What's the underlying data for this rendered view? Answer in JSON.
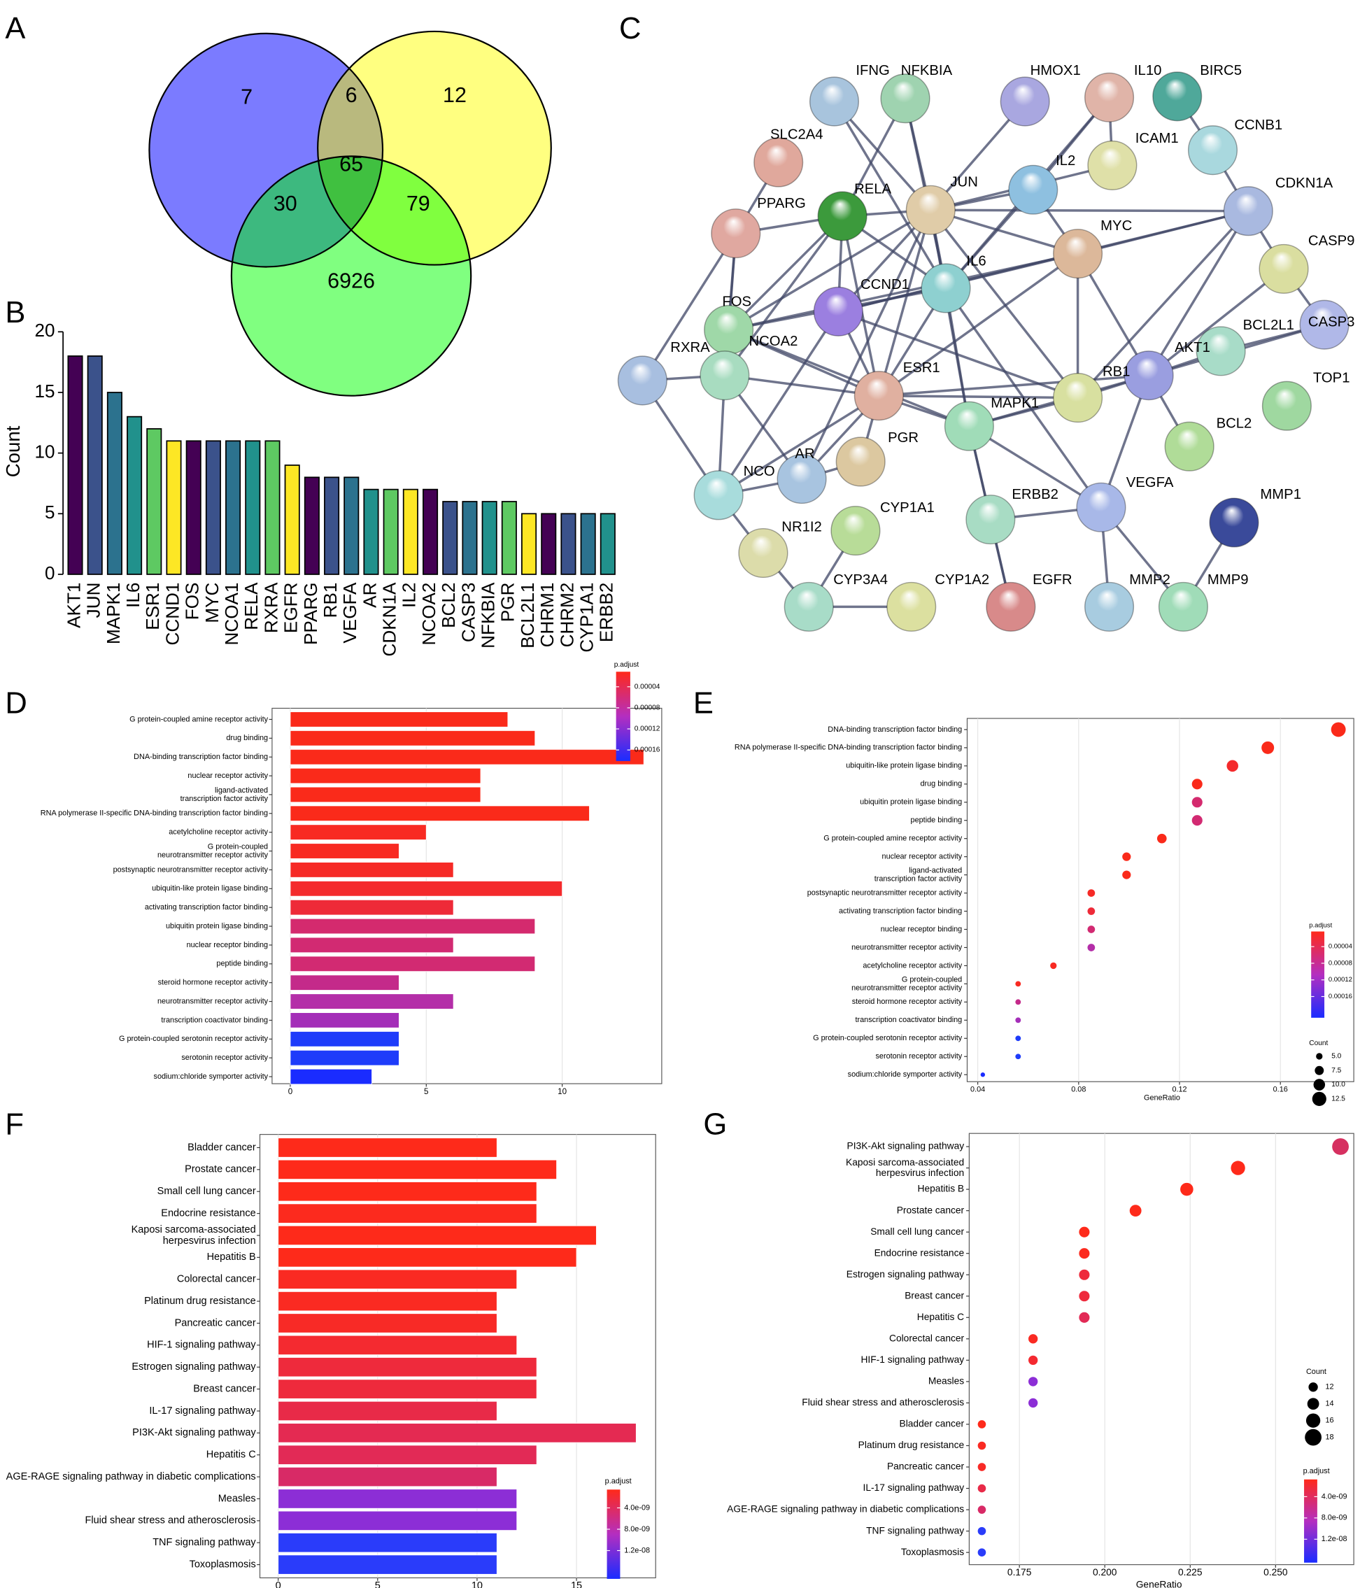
{
  "chart_data": [
    {
      "type": "venn",
      "panel": "A",
      "values": [
        7,
        6,
        12,
        30,
        65,
        79,
        6926
      ],
      "colors": [
        "#7b7bff",
        "#ffff80",
        "#80ff80"
      ]
    },
    {
      "type": "bar",
      "panel": "B",
      "ylabel": "Count",
      "categories": [
        "AKT1",
        "JUN",
        "MAPK1",
        "IL6",
        "ESR1",
        "CCND1",
        "FOS",
        "MYC",
        "NCOA1",
        "RELA",
        "RXRA",
        "EGFR",
        "PPARG",
        "RB1",
        "VEGFA",
        "AR",
        "CDKN1A",
        "IL2",
        "NCOA2",
        "BCL2",
        "CASP3",
        "NFKBIA",
        "PGR",
        "BCL2L1",
        "CHRM1",
        "CHRM2",
        "CYP1A1",
        "ERBB2"
      ],
      "values": [
        18,
        18,
        15,
        13,
        12,
        11,
        11,
        11,
        11,
        11,
        11,
        9,
        8,
        8,
        8,
        7,
        7,
        7,
        7,
        6,
        6,
        6,
        6,
        5,
        5,
        5,
        5,
        5
      ],
      "colors": [
        "#440154",
        "#3b528b",
        "#2c728e",
        "#21918c",
        "#5ec962",
        "#fde725",
        "#440154",
        "#3b528b",
        "#2c728e",
        "#21918c",
        "#5ec962",
        "#fde725",
        "#440154",
        "#3b528b",
        "#2c728e",
        "#21918c",
        "#5ec962",
        "#fde725",
        "#440154",
        "#3b528b",
        "#2c728e",
        "#21918c",
        "#5ec962",
        "#fde725",
        "#440154",
        "#3b528b",
        "#2c728e",
        "#21918c"
      ],
      "ylim": [
        0,
        20
      ],
      "yticks": [
        0,
        5,
        10,
        15,
        20
      ]
    },
    {
      "type": "network",
      "panel": "C",
      "nodes": [
        {
          "label": "IFNG",
          "color": "#a8c4dd"
        },
        {
          "label": "NFKBIA",
          "color": "#9fd3b0"
        },
        {
          "label": "HMOX1",
          "color": "#a9a7e0"
        },
        {
          "label": "IL10",
          "color": "#e0b4a8"
        },
        {
          "label": "BIRC5",
          "color": "#4fa89a"
        },
        {
          "label": "CCNB1",
          "color": "#a9d8de"
        },
        {
          "label": "SLC2A4",
          "color": "#e0a89c"
        },
        {
          "label": "ICAM1",
          "color": "#dfe0a8"
        },
        {
          "label": "IL2",
          "color": "#8ec0e0"
        },
        {
          "label": "CDKN1A",
          "color": "#a9b9e0"
        },
        {
          "label": "RELA",
          "color": "#3c9a3c"
        },
        {
          "label": "JUN",
          "color": "#e0cca8"
        },
        {
          "label": "PPARG",
          "color": "#e0a8a0"
        },
        {
          "label": "MYC",
          "color": "#dcb89a"
        },
        {
          "label": "CASP9",
          "color": "#dadea0"
        },
        {
          "label": "IL6",
          "color": "#8ed0d0"
        },
        {
          "label": "CCND1",
          "color": "#9b7fe0"
        },
        {
          "label": "FOS",
          "color": "#9fd8a8"
        },
        {
          "label": "CASP3",
          "color": "#b0b8e8"
        },
        {
          "label": "BCL2L1",
          "color": "#a8dcc8"
        },
        {
          "label": "AKT1",
          "color": "#9a9ee0"
        },
        {
          "label": "RB1",
          "color": "#d8e0a0"
        },
        {
          "label": "NCOA2",
          "color": "#a8dcc0"
        },
        {
          "label": "RXRA",
          "color": "#a8bfe0"
        },
        {
          "label": "ESR1",
          "color": "#e0b0a0"
        },
        {
          "label": "TOP1",
          "color": "#9fd8a0"
        },
        {
          "label": "MAPK1",
          "color": "#a0dcb8"
        },
        {
          "label": "BCL2",
          "color": "#b0dc98"
        },
        {
          "label": "AR",
          "color": "#a8c4e0"
        },
        {
          "label": "PGR",
          "color": "#dcc8a0"
        },
        {
          "label": "NCO",
          "color": "#a8dcdc"
        },
        {
          "label": "VEGFA",
          "color": "#a8b8e8"
        },
        {
          "label": "CYP1A1",
          "color": "#b8dc98"
        },
        {
          "label": "ERBB2",
          "color": "#a8dcc4"
        },
        {
          "label": "MMP1",
          "color": "#3a4a9a"
        },
        {
          "label": "NR1I2",
          "color": "#dcdcaa"
        },
        {
          "label": "CYP3A4",
          "color": "#a8dcc8"
        },
        {
          "label": "CYP1A2",
          "color": "#dce0a0"
        },
        {
          "label": "EGFR",
          "color": "#d88a8a"
        },
        {
          "label": "MMP2",
          "color": "#a8cce0"
        },
        {
          "label": "MMP9",
          "color": "#a0dcb8"
        }
      ],
      "edges": [
        [
          0,
          11
        ],
        [
          0,
          15
        ],
        [
          1,
          10
        ],
        [
          1,
          15
        ],
        [
          1,
          11
        ],
        [
          2,
          11
        ],
        [
          3,
          8
        ],
        [
          3,
          15
        ],
        [
          3,
          7
        ],
        [
          4,
          5
        ],
        [
          5,
          9
        ],
        [
          6,
          12
        ],
        [
          7,
          11
        ],
        [
          8,
          11
        ],
        [
          8,
          15
        ],
        [
          8,
          13
        ],
        [
          9,
          11
        ],
        [
          9,
          13
        ],
        [
          9,
          20
        ],
        [
          9,
          14
        ],
        [
          9,
          21
        ],
        [
          9,
          16
        ],
        [
          10,
          11
        ],
        [
          10,
          12
        ],
        [
          10,
          17
        ],
        [
          10,
          16
        ],
        [
          10,
          24
        ],
        [
          10,
          15
        ],
        [
          10,
          22
        ],
        [
          11,
          17
        ],
        [
          11,
          13
        ],
        [
          11,
          24
        ],
        [
          11,
          26
        ],
        [
          11,
          16
        ],
        [
          11,
          15
        ],
        [
          11,
          28
        ],
        [
          11,
          21
        ],
        [
          12,
          17
        ],
        [
          12,
          23
        ],
        [
          12,
          22
        ],
        [
          13,
          16
        ],
        [
          13,
          20
        ],
        [
          13,
          21
        ],
        [
          13,
          17
        ],
        [
          13,
          24
        ],
        [
          14,
          20
        ],
        [
          14,
          18
        ],
        [
          18,
          19
        ],
        [
          18,
          20
        ],
        [
          19,
          20
        ],
        [
          20,
          21
        ],
        [
          20,
          26
        ],
        [
          20,
          27
        ],
        [
          20,
          31
        ],
        [
          20,
          24
        ],
        [
          15,
          24
        ],
        [
          15,
          26
        ],
        [
          15,
          31
        ],
        [
          15,
          17
        ],
        [
          16,
          24
        ],
        [
          16,
          21
        ],
        [
          16,
          30
        ],
        [
          17,
          24
        ],
        [
          17,
          26
        ],
        [
          22,
          24
        ],
        [
          22,
          23
        ],
        [
          22,
          28
        ],
        [
          22,
          30
        ],
        [
          23,
          30
        ],
        [
          24,
          26
        ],
        [
          24,
          29
        ],
        [
          24,
          28
        ],
        [
          24,
          30
        ],
        [
          24,
          21
        ],
        [
          26,
          33
        ],
        [
          26,
          31
        ],
        [
          26,
          38
        ],
        [
          26,
          21
        ],
        [
          33,
          38
        ],
        [
          33,
          31
        ],
        [
          31,
          39
        ],
        [
          31,
          40
        ],
        [
          34,
          40
        ],
        [
          35,
          36
        ],
        [
          36,
          32
        ],
        [
          36,
          37
        ],
        [
          28,
          29
        ],
        [
          28,
          30
        ],
        [
          30,
          35
        ]
      ]
    },
    {
      "type": "barh",
      "panel": "D",
      "categories": [
        "G protein-coupled amine receptor activity",
        "drug binding",
        "DNA-binding transcription factor binding",
        "nuclear receptor activity",
        "ligand-activated\ntranscription factor activity",
        "RNA polymerase II-specific DNA-binding transcription factor binding",
        "acetylcholine receptor activity",
        "G protein-coupled\nneurotransmitter receptor activity",
        "postsynaptic neurotransmitter receptor activity",
        "ubiquitin-like protein ligase binding",
        "activating transcription factor binding",
        "ubiquitin protein ligase binding",
        "nuclear receptor binding",
        "peptide binding",
        "steroid hormone receptor activity",
        "neurotransmitter receptor activity",
        "transcription coactivator binding",
        "G protein-coupled serotonin receptor activity",
        "serotonin receptor activity",
        "sodium:chloride symporter activity"
      ],
      "values": [
        8,
        9,
        13,
        7,
        7,
        11,
        5,
        4,
        6,
        10,
        6,
        9,
        6,
        9,
        4,
        6,
        4,
        4,
        4,
        3
      ],
      "colors": [
        "#fa2a1a",
        "#fa2a1a",
        "#fa2a1a",
        "#fa2a1a",
        "#fa2a1a",
        "#fa2a1a",
        "#f82a22",
        "#f82a22",
        "#f62a26",
        "#f42a2c",
        "#ee2a38",
        "#d42a6e",
        "#d22a72",
        "#d22a72",
        "#c42a8a",
        "#b42ea8",
        "#a42eb8",
        "#1e3cfa",
        "#1e3cfa",
        "#1a2cff"
      ],
      "xlim": [
        -0.67,
        13.66
      ],
      "xticks": [
        0,
        5,
        10
      ],
      "grid": true,
      "color_legend": {
        "title": "p.adjust",
        "ticks": [
          4e-05,
          8e-05,
          0.00012,
          0.00016
        ],
        "clim": [
          1.14e-05,
          0.000181
        ],
        "colors": [
          "#ff2a1a",
          "#b42ec0",
          "#1a2cff"
        ]
      }
    },
    {
      "type": "dot",
      "panel": "E",
      "xlabel": "GeneRatio",
      "categories": [
        "DNA-binding transcription factor binding",
        "RNA polymerase II-specific DNA-binding transcription factor binding",
        "ubiquitin-like protein ligase binding",
        "drug binding",
        "ubiquitin protein ligase binding",
        "peptide binding",
        "G protein-coupled amine receptor activity",
        "nuclear receptor activity",
        "ligand-activated\ntranscription factor activity",
        "postsynaptic neurotransmitter receptor activity",
        "activating transcription factor binding",
        "nuclear receptor binding",
        "neurotransmitter receptor activity",
        "acetylcholine receptor activity",
        "G protein-coupled\nneurotransmitter receptor activity",
        "steroid hormone receptor activity",
        "transcription coactivator binding",
        "G protein-coupled serotonin receptor activity",
        "serotonin receptor activity",
        "sodium:chloride symporter activity"
      ],
      "x": [
        0.183,
        0.155,
        0.141,
        0.127,
        0.127,
        0.127,
        0.113,
        0.099,
        0.099,
        0.085,
        0.085,
        0.085,
        0.085,
        0.07,
        0.056,
        0.056,
        0.056,
        0.056,
        0.056,
        0.042
      ],
      "sizes": [
        13,
        11,
        10,
        9,
        9,
        9,
        8,
        7,
        7,
        6,
        6,
        6,
        6,
        5,
        4,
        4,
        4,
        4,
        4,
        3
      ],
      "colors": [
        "#fa2a1a",
        "#fa2a1a",
        "#f42a2c",
        "#fa2a1a",
        "#d42a6e",
        "#d22a72",
        "#fa2a1a",
        "#fa2a1a",
        "#fa2a1a",
        "#f62a26",
        "#ee2a38",
        "#d22a72",
        "#b42ea8",
        "#f82a22",
        "#f82a22",
        "#c42a8a",
        "#a42eb8",
        "#1e3cfa",
        "#1e3cfa",
        "#1a2cff"
      ],
      "xlim": [
        0.0358,
        0.1891
      ],
      "xticks": [
        0.04,
        0.08,
        0.12,
        0.16
      ],
      "grid": true,
      "size_legend": {
        "title": "Count",
        "ticks": [
          {
            "value": 5,
            "label": "5.0"
          },
          7.5,
          {
            "value": 10,
            "label": "10.0"
          },
          12.5
        ]
      },
      "color_legend": {
        "title": "p.adjust",
        "ticks": [
          4e-05,
          8e-05,
          0.00012,
          0.00016
        ],
        "clim": [
          3.6e-06,
          0.000211
        ],
        "colors": [
          "#ff2a1a",
          "#b42ec0",
          "#1a2cff"
        ]
      }
    },
    {
      "type": "barh",
      "panel": "F",
      "categories": [
        "Bladder cancer",
        "Prostate cancer",
        "Small cell lung cancer",
        "Endocrine resistance",
        "Kaposi sarcoma-associated\nherpesvirus infection",
        "Hepatitis B",
        "Colorectal cancer",
        "Platinum drug resistance",
        "Pancreatic cancer",
        "HIF-1 signaling pathway",
        "Estrogen signaling pathway",
        "Breast cancer",
        "IL-17 signaling pathway",
        "PI3K-Akt signaling pathway",
        "Hepatitis C",
        "AGE-RAGE signaling pathway in diabetic complications",
        "Measles",
        "Fluid shear stress and atherosclerosis",
        "TNF signaling pathway",
        "Toxoplasmosis"
      ],
      "values": [
        11,
        14,
        13,
        13,
        16,
        15,
        12,
        11,
        11,
        12,
        13,
        13,
        11,
        18,
        13,
        11,
        12,
        12,
        11,
        11
      ],
      "colors": [
        "#fe2a1a",
        "#fe2a1a",
        "#fe2a1a",
        "#fc2a1e",
        "#fe2a1a",
        "#fe2a1a",
        "#fa2a22",
        "#fa2a22",
        "#f82a26",
        "#f42a30",
        "#ee2a3c",
        "#ee2a3c",
        "#e82a48",
        "#e42a52",
        "#e22a56",
        "#d82a66",
        "#8c2ed6",
        "#8c2ed6",
        "#2a3cfa",
        "#2a3cfa"
      ],
      "xlim": [
        -0.92,
        18.98
      ],
      "xticks": [
        0,
        5,
        10,
        15
      ],
      "grid": true,
      "color_legend": {
        "title": "p.adjust",
        "ticks": [
          {
            "value": 4e-09,
            "label": "4.0e-09"
          },
          {
            "value": 8e-09,
            "label": "8.0e-09"
          },
          {
            "value": 1.2e-08,
            "label": "1.2e-08"
          }
        ],
        "clim": [
          5.7e-10,
          1.73e-08
        ],
        "colors": [
          "#ff2a1a",
          "#b42ec0",
          "#1a2cff"
        ]
      }
    },
    {
      "type": "dot",
      "panel": "G",
      "xlabel": "GeneRatio",
      "categories": [
        "PI3K-Akt signaling pathway",
        "Kaposi sarcoma-associated\nherpesvirus infection",
        "Hepatitis B",
        "Prostate cancer",
        "Small cell lung cancer",
        "Endocrine resistance",
        "Estrogen signaling pathway",
        "Breast cancer",
        "Hepatitis C",
        "Colorectal cancer",
        "HIF-1 signaling pathway",
        "Measles",
        "Fluid shear stress and atherosclerosis",
        "Bladder cancer",
        "Platinum drug resistance",
        "Pancreatic cancer",
        "IL-17 signaling pathway",
        "AGE-RAGE signaling pathway in diabetic complications",
        "TNF signaling pathway",
        "Toxoplasmosis"
      ],
      "x": [
        0.269,
        0.239,
        0.224,
        0.209,
        0.194,
        0.194,
        0.194,
        0.194,
        0.194,
        0.179,
        0.179,
        0.179,
        0.179,
        0.164,
        0.164,
        0.164,
        0.164,
        0.164,
        0.164,
        0.164
      ],
      "sizes": [
        18,
        16,
        15,
        14,
        13,
        13,
        13,
        13,
        13,
        12,
        12,
        12,
        12,
        11,
        11,
        11,
        11,
        11,
        11,
        11
      ],
      "colors": [
        "#d63060",
        "#fe2a1a",
        "#fe2a1a",
        "#fe2a1a",
        "#fe2a1a",
        "#fc2a1e",
        "#ee2a3c",
        "#ee2a3c",
        "#e22a56",
        "#fa2a22",
        "#f42a30",
        "#8c2ed6",
        "#8c2ed6",
        "#fe2a1a",
        "#fa2a22",
        "#f82a26",
        "#e82a48",
        "#d82a66",
        "#2a3cfa",
        "#2a3cfa"
      ],
      "xlim": [
        0.1603,
        0.2729
      ],
      "xticks": [
        0.175,
        {
          "value": 0.2,
          "label": "0.200"
        },
        0.225,
        {
          "value": 0.25,
          "label": "0.250"
        }
      ],
      "grid": true,
      "size_legend": {
        "title": "Count",
        "ticks": [
          12,
          14,
          16,
          18
        ]
      },
      "color_legend": {
        "title": "p.adjust",
        "ticks": [
          {
            "value": 4e-09,
            "label": "4.0e-09"
          },
          {
            "value": 8e-09,
            "label": "8.0e-09"
          },
          {
            "value": 1.2e-08,
            "label": "1.2e-08"
          }
        ],
        "clim": [
          7.6e-10,
          1.64e-08
        ],
        "colors": [
          "#ff2a1a",
          "#b42ec0",
          "#1a2cff"
        ]
      }
    }
  ]
}
